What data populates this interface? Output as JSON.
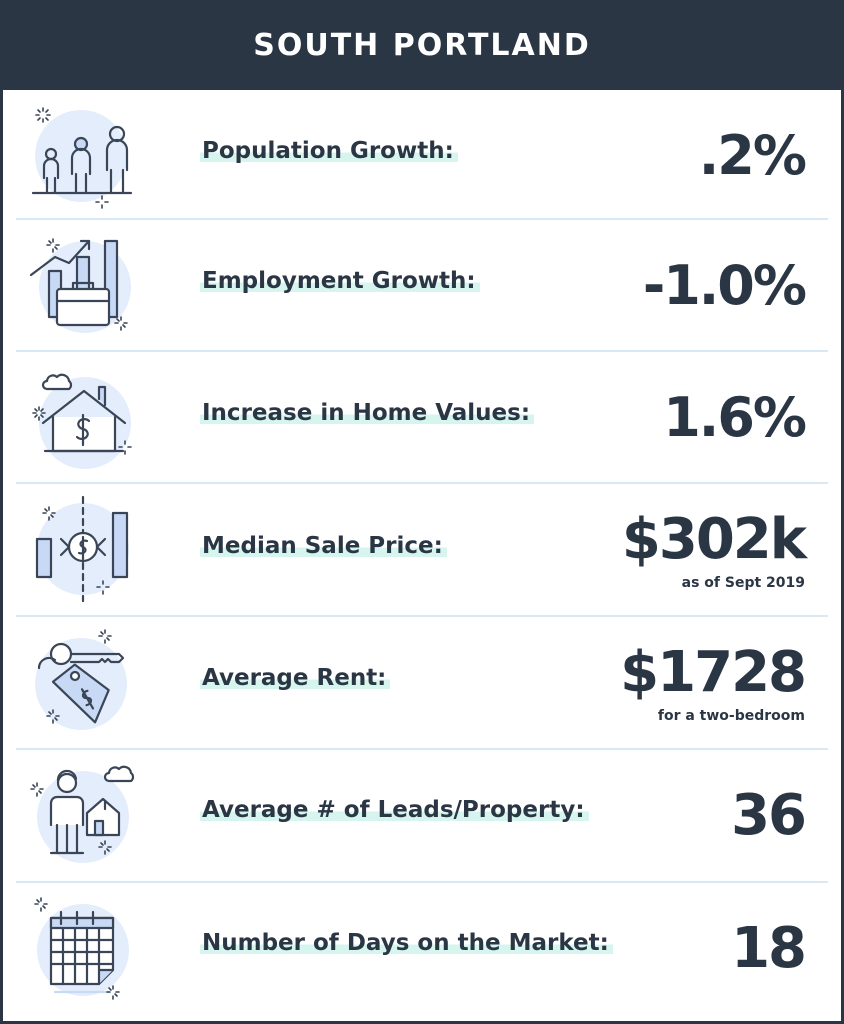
{
  "header": {
    "title": "SOUTH PORTLAND"
  },
  "metrics": [
    {
      "label": "Population Growth:",
      "value": ".2%",
      "icon": "people-icon"
    },
    {
      "label": "Employment Growth:",
      "value": "-1.0%",
      "icon": "briefcase-chart-icon"
    },
    {
      "label": "Increase in Home Values:",
      "value": "1.6%",
      "icon": "house-dollar-icon"
    },
    {
      "label": "Median Sale Price:",
      "value": "$302k",
      "note": "as  of Sept 2019",
      "icon": "price-exchange-icon"
    },
    {
      "label": "Average Rent:",
      "value": "$1728",
      "note": "for a two-bedroom",
      "icon": "key-tag-icon"
    },
    {
      "label": "Average # of Leads/Property:",
      "value": "36",
      "icon": "person-house-icon"
    },
    {
      "label": "Number of Days on the Market:",
      "value": "18",
      "icon": "calendar-icon"
    }
  ],
  "colors": {
    "navy": "#2b3645",
    "icon_fill": "#e3edfb",
    "icon_stroke": "#3a4657",
    "accent_blue": "#c7d9f5",
    "highlight": "#d6f5ee",
    "divider": "#d9e8f5"
  }
}
